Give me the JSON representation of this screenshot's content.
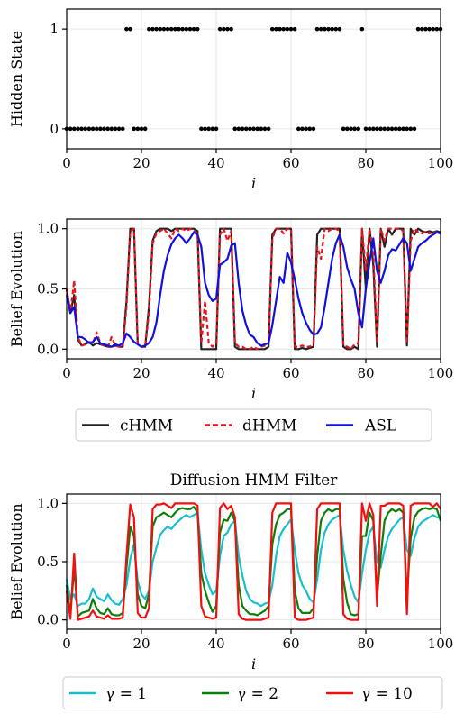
{
  "chart_data": [
    {
      "type": "scatter",
      "title": "",
      "xlabel": "i",
      "ylabel": "Hidden State",
      "xlim": [
        0,
        100
      ],
      "ylim": [
        -0.2,
        1.2
      ],
      "xticks": [
        "0",
        "20",
        "40",
        "60",
        "80",
        "100"
      ],
      "yticks": [
        "0",
        "1"
      ],
      "grid": true,
      "series": [
        {
          "values": [
            0,
            0,
            0,
            0,
            0,
            0,
            0,
            0,
            0,
            0,
            0,
            0,
            0,
            0,
            0,
            0,
            1,
            1,
            0,
            0,
            0,
            0,
            1,
            1,
            1,
            1,
            1,
            1,
            1,
            1,
            1,
            1,
            1,
            1,
            1,
            1,
            0,
            0,
            0,
            0,
            0,
            1,
            1,
            1,
            1,
            0,
            0,
            0,
            0,
            0,
            0,
            0,
            0,
            0,
            0,
            1,
            1,
            1,
            1,
            1,
            1,
            1,
            0,
            0,
            0,
            0,
            0,
            1,
            1,
            1,
            1,
            1,
            1,
            1,
            0,
            0,
            0,
            0,
            0,
            1,
            0,
            0,
            0,
            0,
            0,
            0,
            0,
            0,
            0,
            0,
            0,
            0,
            0,
            0,
            1,
            1,
            1,
            1,
            1,
            1,
            1
          ]
        }
      ]
    },
    {
      "type": "line",
      "title": "",
      "xlabel": "i",
      "ylabel": "Belief Evolution",
      "xlim": [
        0,
        100
      ],
      "ylim": [
        -0.08,
        1.08
      ],
      "xticks": [
        "0",
        "20",
        "40",
        "60",
        "80",
        "100"
      ],
      "yticks": [
        "0.0",
        "0.5",
        "1.0"
      ],
      "grid": true,
      "legend": "below",
      "series": [
        {
          "name": "cHMM",
          "color": "#222222",
          "style": "solid",
          "values": [
            0.5,
            0.3,
            0.45,
            0.08,
            0.03,
            0.04,
            0.06,
            0.03,
            0.05,
            0.04,
            0.03,
            0.02,
            0.02,
            0.03,
            0.02,
            0.02,
            0.4,
            1.0,
            1.0,
            0.04,
            0.02,
            0.02,
            0.35,
            0.9,
            0.98,
            1.0,
            1.0,
            1.0,
            0.98,
            1.0,
            1.0,
            1.0,
            1.0,
            1.0,
            1.0,
            0.98,
            0.0,
            0.0,
            0.0,
            0.0,
            0.0,
            1.0,
            1.0,
            1.0,
            1.0,
            0.02,
            0.0,
            0.0,
            0.0,
            0.0,
            0.0,
            0.0,
            0.0,
            0.0,
            0.02,
            0.95,
            1.0,
            1.0,
            1.0,
            1.0,
            1.0,
            0.0,
            0.0,
            0.01,
            0.0,
            0.01,
            0.02,
            0.95,
            1.0,
            1.0,
            1.0,
            1.0,
            1.0,
            1.0,
            0.02,
            0.0,
            0.0,
            0.02,
            0.0,
            1.0,
            0.5,
            1.0,
            0.7,
            0.02,
            1.0,
            0.85,
            1.0,
            0.95,
            1.0,
            1.0,
            1.0,
            0.03,
            1.0,
            0.95,
            1.0,
            0.98,
            0.97,
            0.98,
            0.97,
            0.98,
            0.97
          ]
        },
        {
          "name": "dHMM",
          "color": "#e8141c",
          "style": "dashed",
          "values": [
            0.5,
            0.3,
            0.57,
            0.1,
            0.03,
            0.04,
            0.06,
            0.05,
            0.14,
            0.05,
            0.03,
            0.02,
            0.1,
            0.03,
            0.02,
            0.02,
            0.35,
            0.98,
            1.0,
            0.04,
            0.02,
            0.02,
            0.3,
            0.88,
            0.96,
            0.98,
            1.0,
            0.96,
            0.92,
            1.0,
            0.98,
            1.0,
            0.98,
            1.0,
            0.98,
            0.96,
            0.05,
            0.4,
            0.05,
            0.02,
            0.05,
            0.95,
            1.0,
            0.9,
            0.98,
            0.05,
            0.02,
            0.02,
            0.0,
            0.0,
            0.02,
            0.0,
            0.02,
            0.03,
            0.05,
            0.92,
            1.0,
            1.0,
            0.96,
            1.0,
            1.0,
            0.02,
            0.02,
            0.03,
            0.02,
            0.02,
            0.05,
            0.85,
            0.75,
            1.0,
            0.98,
            1.0,
            1.0,
            0.98,
            0.03,
            0.02,
            0.0,
            0.04,
            0.05,
            1.0,
            0.65,
            1.0,
            0.8,
            0.05,
            1.0,
            0.9,
            1.0,
            1.0,
            1.0,
            1.0,
            0.98,
            0.05,
            0.9,
            1.0,
            0.97,
            0.96,
            0.98,
            0.96,
            0.97,
            0.97,
            0.96
          ]
        },
        {
          "name": "ASL",
          "color": "#1010e0",
          "style": "solid",
          "values": [
            0.45,
            0.3,
            0.35,
            0.1,
            0.1,
            0.08,
            0.05,
            0.06,
            0.1,
            0.05,
            0.04,
            0.03,
            0.02,
            0.04,
            0.03,
            0.05,
            0.13,
            0.1,
            0.06,
            0.04,
            0.02,
            0.03,
            0.05,
            0.1,
            0.22,
            0.45,
            0.65,
            0.78,
            0.87,
            0.92,
            0.95,
            0.92,
            0.88,
            0.92,
            0.97,
            0.95,
            0.85,
            0.55,
            0.45,
            0.4,
            0.42,
            0.7,
            0.72,
            0.75,
            0.86,
            0.88,
            0.55,
            0.32,
            0.2,
            0.12,
            0.1,
            0.05,
            0.03,
            0.04,
            0.05,
            0.2,
            0.4,
            0.6,
            0.55,
            0.8,
            0.72,
            0.58,
            0.42,
            0.3,
            0.22,
            0.16,
            0.12,
            0.13,
            0.18,
            0.35,
            0.55,
            0.75,
            0.88,
            0.95,
            0.85,
            0.68,
            0.58,
            0.5,
            0.3,
            0.18,
            0.5,
            0.72,
            0.92,
            0.65,
            0.55,
            0.65,
            0.78,
            0.83,
            0.82,
            0.87,
            0.92,
            0.88,
            0.65,
            0.75,
            0.85,
            0.88,
            0.9,
            0.93,
            0.95,
            0.97,
            0.96
          ]
        }
      ]
    },
    {
      "type": "line",
      "title": "Diffusion HMM Filter",
      "xlabel": "i",
      "ylabel": "Belief Evolution",
      "xlim": [
        0,
        100
      ],
      "ylim": [
        -0.08,
        1.08
      ],
      "xticks": [
        "0",
        "20",
        "40",
        "60",
        "80",
        "100"
      ],
      "yticks": [
        "0.0",
        "0.5",
        "1.0"
      ],
      "grid": true,
      "legend": "below",
      "series": [
        {
          "name": "γ = 1",
          "color": "#17becf",
          "style": "solid",
          "values": [
            0.35,
            0.18,
            0.22,
            0.12,
            0.14,
            0.14,
            0.18,
            0.27,
            0.2,
            0.18,
            0.16,
            0.22,
            0.17,
            0.14,
            0.13,
            0.18,
            0.3,
            0.52,
            0.65,
            0.33,
            0.22,
            0.18,
            0.25,
            0.5,
            0.62,
            0.73,
            0.77,
            0.8,
            0.78,
            0.82,
            0.85,
            0.88,
            0.9,
            0.88,
            0.9,
            0.92,
            0.6,
            0.4,
            0.3,
            0.22,
            0.25,
            0.55,
            0.72,
            0.75,
            0.82,
            0.85,
            0.55,
            0.38,
            0.25,
            0.18,
            0.15,
            0.14,
            0.12,
            0.14,
            0.15,
            0.3,
            0.55,
            0.72,
            0.78,
            0.82,
            0.86,
            0.6,
            0.4,
            0.3,
            0.25,
            0.18,
            0.15,
            0.35,
            0.6,
            0.75,
            0.82,
            0.86,
            0.88,
            0.9,
            0.6,
            0.42,
            0.3,
            0.2,
            0.15,
            0.4,
            0.6,
            0.75,
            0.8,
            0.5,
            0.45,
            0.6,
            0.72,
            0.78,
            0.82,
            0.86,
            0.88,
            0.6,
            0.55,
            0.7,
            0.8,
            0.84,
            0.86,
            0.88,
            0.9,
            0.88,
            0.88
          ]
        },
        {
          "name": "γ = 2",
          "color": "#0a7f0a",
          "style": "solid",
          "values": [
            0.3,
            0.05,
            0.45,
            0.03,
            0.06,
            0.07,
            0.08,
            0.18,
            0.1,
            0.06,
            0.05,
            0.1,
            0.05,
            0.04,
            0.04,
            0.06,
            0.45,
            0.8,
            0.72,
            0.22,
            0.12,
            0.1,
            0.22,
            0.8,
            0.88,
            0.9,
            0.92,
            0.9,
            0.88,
            0.92,
            0.95,
            0.96,
            0.95,
            0.95,
            0.97,
            0.92,
            0.4,
            0.25,
            0.15,
            0.07,
            0.12,
            0.75,
            0.86,
            0.85,
            0.92,
            0.85,
            0.3,
            0.12,
            0.08,
            0.05,
            0.05,
            0.04,
            0.06,
            0.08,
            0.12,
            0.65,
            0.82,
            0.9,
            0.92,
            0.95,
            0.95,
            0.25,
            0.1,
            0.06,
            0.06,
            0.06,
            0.1,
            0.55,
            0.85,
            0.92,
            0.95,
            0.93,
            0.95,
            0.95,
            0.35,
            0.15,
            0.05,
            0.04,
            0.05,
            0.72,
            0.72,
            0.92,
            0.85,
            0.2,
            0.55,
            0.85,
            0.92,
            0.95,
            0.93,
            0.95,
            0.92,
            0.2,
            0.7,
            0.88,
            0.93,
            0.95,
            0.96,
            0.95,
            0.96,
            0.95,
            0.85
          ]
        },
        {
          "name": "γ = 10",
          "color": "#f01010",
          "style": "solid",
          "values": [
            0.25,
            0.01,
            0.57,
            0.0,
            0.01,
            0.02,
            0.03,
            0.08,
            0.03,
            0.02,
            0.01,
            0.04,
            0.01,
            0.01,
            0.01,
            0.02,
            0.55,
            0.99,
            0.88,
            0.06,
            0.02,
            0.02,
            0.1,
            0.95,
            0.99,
            0.99,
            1.0,
            0.98,
            0.96,
            1.0,
            1.0,
            1.0,
            1.0,
            1.0,
            1.0,
            0.98,
            0.12,
            0.03,
            0.02,
            0.01,
            0.02,
            0.96,
            1.0,
            0.95,
            0.98,
            0.88,
            0.05,
            0.01,
            0.0,
            0.0,
            0.0,
            0.0,
            0.0,
            0.01,
            0.02,
            0.92,
            1.0,
            1.0,
            1.0,
            1.0,
            1.0,
            0.02,
            0.0,
            0.0,
            0.0,
            0.01,
            0.02,
            0.95,
            1.0,
            1.0,
            1.0,
            1.0,
            1.0,
            1.0,
            0.05,
            0.01,
            0.0,
            0.0,
            0.0,
            1.0,
            0.85,
            1.0,
            0.9,
            0.12,
            0.98,
            0.98,
            1.0,
            1.0,
            1.0,
            1.0,
            0.98,
            0.05,
            0.98,
            1.0,
            1.0,
            1.0,
            1.0,
            1.0,
            0.97,
            1.0,
            0.95
          ]
        }
      ]
    }
  ]
}
